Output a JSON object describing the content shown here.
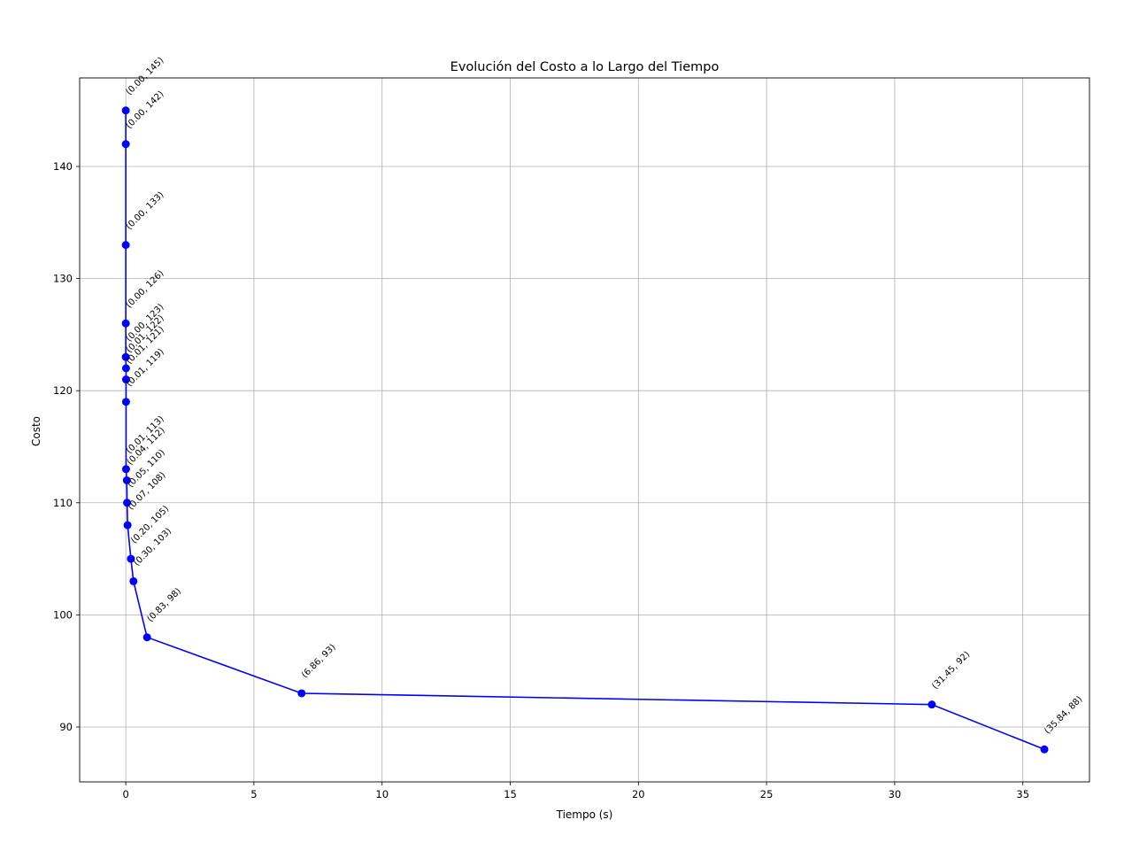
{
  "chart_data": {
    "type": "line",
    "title": "Evolución del Costo a lo Largo del Tiempo",
    "xlabel": "Tiempo (s)",
    "ylabel": "Costo",
    "xlim": [
      -1.8,
      37.6
    ],
    "ylim": [
      85.1,
      147.9
    ],
    "xticks": [
      0,
      5,
      10,
      15,
      20,
      25,
      30,
      35
    ],
    "yticks": [
      90,
      100,
      110,
      120,
      130,
      140
    ],
    "grid": true,
    "line_color": "#0000ff",
    "marker": "circle",
    "points": [
      {
        "x": 0.0,
        "y": 145,
        "label": "(0.00, 145)"
      },
      {
        "x": 0.0,
        "y": 142,
        "label": "(0.00, 142)"
      },
      {
        "x": 0.0,
        "y": 133,
        "label": "(0.00, 133)"
      },
      {
        "x": 0.0,
        "y": 126,
        "label": "(0.00, 126)"
      },
      {
        "x": 0.0,
        "y": 123,
        "label": "(0.00, 123)"
      },
      {
        "x": 0.01,
        "y": 122,
        "label": "(0.01, 122)"
      },
      {
        "x": 0.01,
        "y": 121,
        "label": "(0.01, 121)"
      },
      {
        "x": 0.01,
        "y": 119,
        "label": "(0.01, 119)"
      },
      {
        "x": 0.01,
        "y": 113,
        "label": "(0.01, 113)"
      },
      {
        "x": 0.04,
        "y": 112,
        "label": "(0.04, 112)"
      },
      {
        "x": 0.05,
        "y": 110,
        "label": "(0.05, 110)"
      },
      {
        "x": 0.07,
        "y": 108,
        "label": "(0.07, 108)"
      },
      {
        "x": 0.2,
        "y": 105,
        "label": "(0.20, 105)"
      },
      {
        "x": 0.3,
        "y": 103,
        "label": "(0.30, 103)"
      },
      {
        "x": 0.83,
        "y": 98,
        "label": "(0.83, 98)"
      },
      {
        "x": 6.86,
        "y": 93,
        "label": "(6.86, 93)"
      },
      {
        "x": 31.45,
        "y": 92,
        "label": "(31.45, 92)"
      },
      {
        "x": 35.84,
        "y": 88,
        "label": "(35.84, 88)"
      }
    ]
  }
}
